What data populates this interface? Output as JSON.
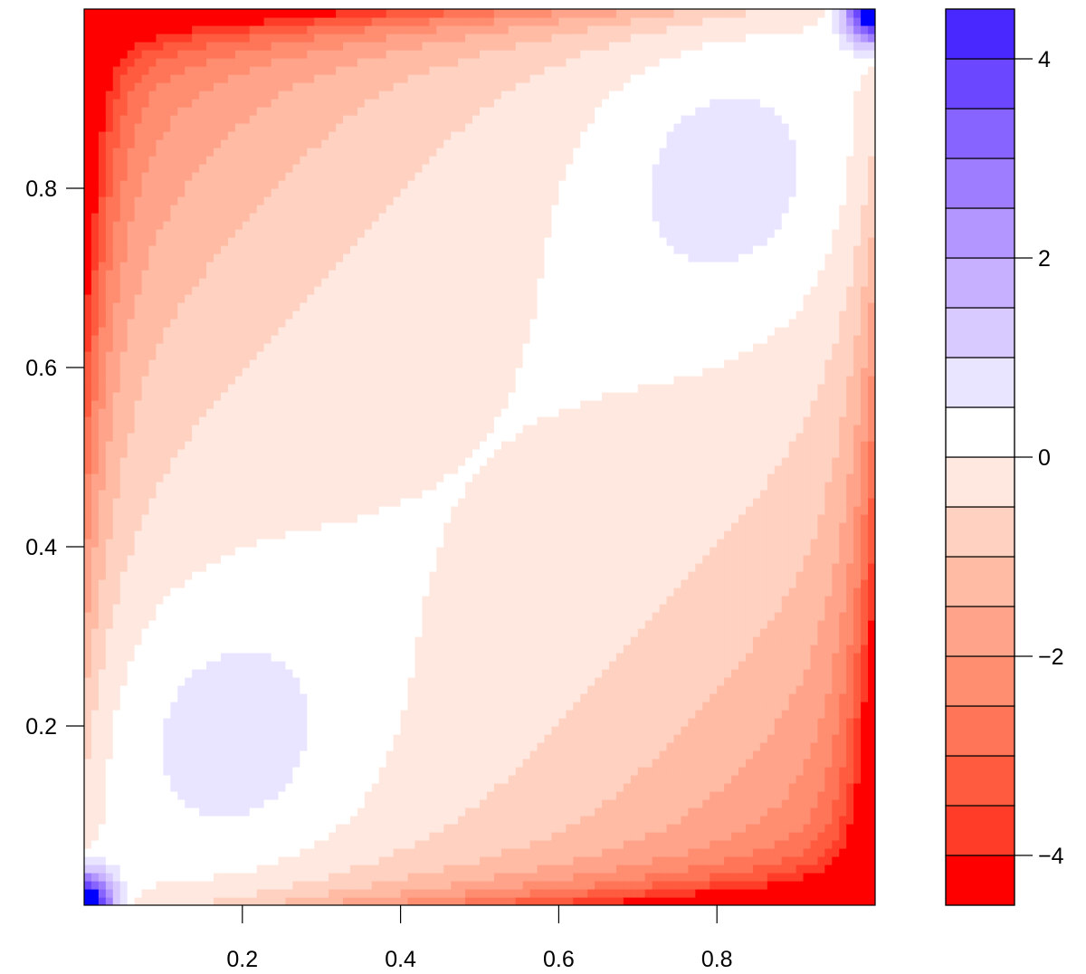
{
  "chart_data": {
    "type": "heatmap",
    "subtype": "filled-contour",
    "title": "",
    "xlabel": "",
    "ylabel": "",
    "xlim": [
      0.0,
      1.0
    ],
    "ylim": [
      0.0,
      1.0
    ],
    "x_ticks": [
      "0.2",
      "0.4",
      "0.6",
      "0.8"
    ],
    "y_ticks": [
      "0.2",
      "0.4",
      "0.6",
      "0.8"
    ],
    "colorbar": {
      "range": [
        -4.5,
        4.5
      ],
      "breaks": [
        -4.5,
        -4,
        -3.5,
        -3,
        -2.5,
        -2,
        -1.5,
        -1,
        -0.5,
        0,
        0.5,
        1,
        1.5,
        2,
        2.5,
        3,
        3.5,
        4,
        4.5
      ],
      "tick_values": [
        -4,
        -2,
        0,
        2,
        4
      ],
      "tick_labels": [
        "−4",
        "−2",
        "0",
        "2",
        "4"
      ],
      "colors": [
        "#ff0000",
        "#ff3c27",
        "#ff5b3f",
        "#ff7558",
        "#ff8d70",
        "#ffa48a",
        "#ffbba4",
        "#ffd1c1",
        "#ffe8e0",
        "#ffffff",
        "#e9e4ff",
        "#d8caff",
        "#c6b0ff",
        "#b396ff",
        "#9e7dff",
        "#8763ff",
        "#6b48ff",
        "#4828ff",
        "#0000ff"
      ]
    },
    "grid": false,
    "legend": "colorbar-right",
    "note_values": "Field read from the plot: approx. zero along the diagonal x=y, negative (red) toward the top-left and bottom-right corners, slightly positive (blue) near (0.2,0.2) and (0.8,0.8); extreme corners (0,0) and (1,1) are blue."
  }
}
